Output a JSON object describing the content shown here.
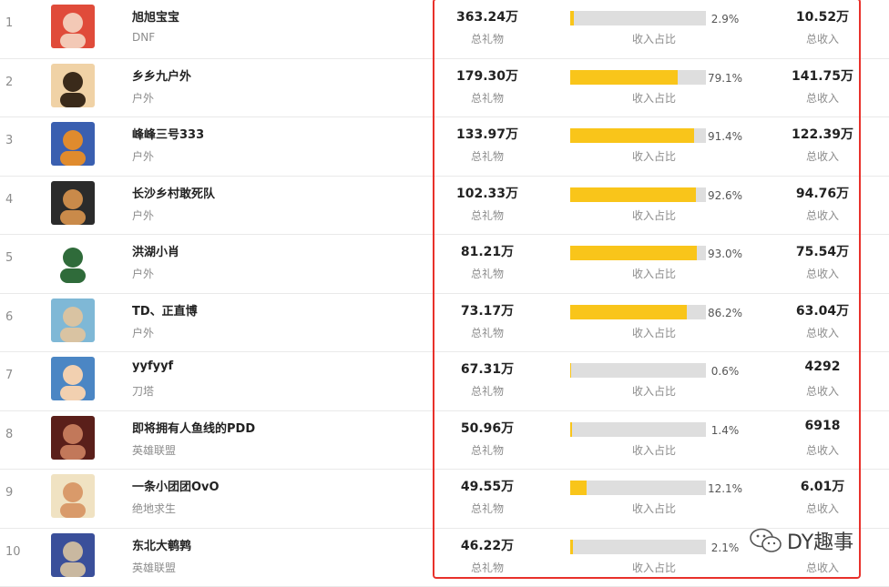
{
  "columns": {
    "gift_label": "总礼物",
    "share_label": "收入占比",
    "income_label": "总收入"
  },
  "rows": [
    {
      "rank": "1",
      "name": "旭旭宝宝",
      "category": "DNF",
      "total_gift": "363.24万",
      "share_pct": "2.9%",
      "share": 0.029,
      "total_income": "10.52万"
    },
    {
      "rank": "2",
      "name": "乡乡九户外",
      "category": "户外",
      "total_gift": "179.30万",
      "share_pct": "79.1%",
      "share": 0.791,
      "total_income": "141.75万"
    },
    {
      "rank": "3",
      "name": "峰峰三号333",
      "category": "户外",
      "total_gift": "133.97万",
      "share_pct": "91.4%",
      "share": 0.914,
      "total_income": "122.39万"
    },
    {
      "rank": "4",
      "name": "长沙乡村敢死队",
      "category": "户外",
      "total_gift": "102.33万",
      "share_pct": "92.6%",
      "share": 0.926,
      "total_income": "94.76万"
    },
    {
      "rank": "5",
      "name": "洪湖小肖",
      "category": "户外",
      "total_gift": "81.21万",
      "share_pct": "93.0%",
      "share": 0.93,
      "total_income": "75.54万"
    },
    {
      "rank": "6",
      "name": "TD、正直博",
      "category": "户外",
      "total_gift": "73.17万",
      "share_pct": "86.2%",
      "share": 0.862,
      "total_income": "63.04万"
    },
    {
      "rank": "7",
      "name": "yyfyyf",
      "category": "刀塔",
      "total_gift": "67.31万",
      "share_pct": "0.6%",
      "share": 0.006,
      "total_income": "4292"
    },
    {
      "rank": "8",
      "name": "即将拥有人鱼线的PDD",
      "category": "英雄联盟",
      "total_gift": "50.96万",
      "share_pct": "1.4%",
      "share": 0.014,
      "total_income": "6918"
    },
    {
      "rank": "9",
      "name": "一条小团团OvO",
      "category": "绝地求生",
      "total_gift": "49.55万",
      "share_pct": "12.1%",
      "share": 0.121,
      "total_income": "6.01万"
    },
    {
      "rank": "10",
      "name": "东北大鹌鹑",
      "category": "英雄联盟",
      "total_gift": "46.22万",
      "share_pct": "2.1%",
      "share": 0.021,
      "total_income": ""
    }
  ],
  "watermark": {
    "text": "DY趣事",
    "icon": "wechat-icon"
  },
  "colors": {
    "bar_fill": "#f9c51a",
    "bar_track": "#dedede",
    "highlight": "#e8312b"
  }
}
